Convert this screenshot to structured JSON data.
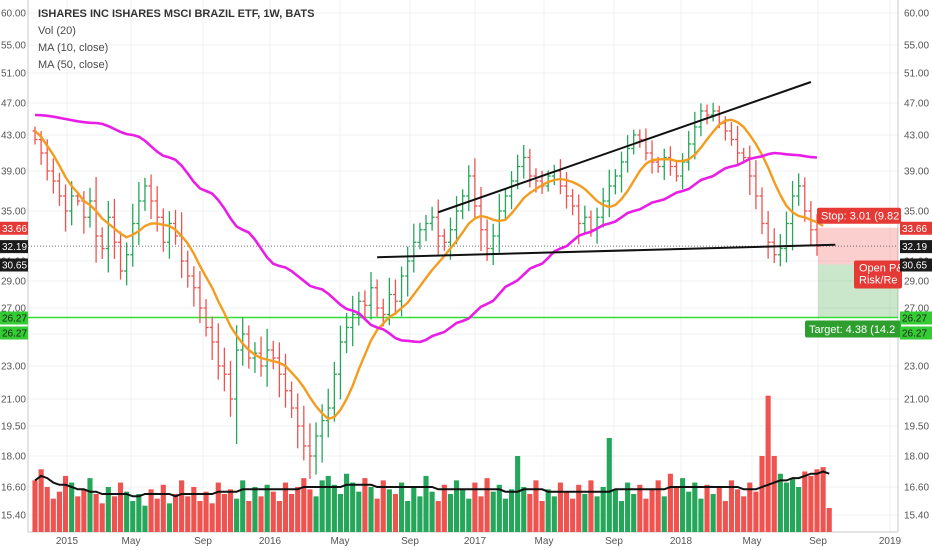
{
  "legend": {
    "title": "ISHARES INC ISHARES MSCI BRAZIL ETF, 1W, BATS",
    "vol": "Vol (20)",
    "ma10": "MA (10, close)",
    "ma50": "MA (50, close)"
  },
  "colors": {
    "up": "#26a65b",
    "down": "#ef5350",
    "ma10": "#f39c1f",
    "ma50": "#e91ee6",
    "vol_ma": "#111111",
    "stop": "#e53935",
    "target": "#2e9f2e",
    "hline": "#33dd33",
    "trend": "#111111"
  },
  "chart_data": {
    "type": "candlestick",
    "x_ticks": [
      "2015",
      "May",
      "Sep",
      "2016",
      "May",
      "Sep",
      "2017",
      "May",
      "Sep",
      "2018",
      "May",
      "Sep",
      "2019"
    ],
    "y_ticks": [
      60.0,
      55.0,
      51.0,
      47.0,
      43.0,
      39.0,
      35.0,
      31.0,
      29.0,
      27.0,
      25.0,
      23.0,
      21.0,
      19.5,
      18.0,
      16.6,
      15.4
    ],
    "y_tick_labels": [
      "60.00",
      "55.00",
      "51.00",
      "47.00",
      "43.00",
      "39.00",
      "35.00",
      "31.00",
      "29.00",
      "27.00",
      "25.00",
      "23.00",
      "21.00",
      "19.50",
      "18.00",
      "16.60",
      "15.40"
    ],
    "price_closes": [
      42.5,
      41.0,
      39.0,
      38.0,
      36.5,
      35.0,
      36.5,
      36.0,
      34.5,
      36.0,
      33.0,
      32.0,
      34.5,
      32.5,
      30.0,
      31.5,
      34.0,
      36.0,
      37.5,
      36.0,
      34.5,
      32.5,
      34.0,
      33.0,
      31.0,
      29.5,
      28.5,
      27.0,
      25.5,
      24.5,
      23.0,
      22.5,
      21.0,
      24.0,
      25.0,
      23.5,
      23.8,
      23.0,
      24.0,
      23.5,
      22.5,
      21.5,
      20.5,
      19.5,
      18.5,
      18.0,
      19.0,
      19.8,
      20.5,
      22.5,
      24.5,
      25.5,
      26.5,
      27.5,
      27.2,
      28.5,
      27.0,
      26.5,
      28.0,
      27.5,
      29.5,
      31.0,
      32.5,
      33.5,
      34.0,
      34.5,
      33.0,
      32.5,
      33.5,
      35.0,
      36.5,
      38.5,
      35.5,
      33.5,
      32.0,
      33.0,
      35.0,
      36.5,
      38.0,
      39.5,
      40.5,
      38.5,
      38.0,
      37.5,
      38.5,
      39.0,
      37.5,
      36.5,
      35.5,
      34.0,
      34.5,
      33.5,
      34.5,
      36.0,
      37.5,
      38.5,
      40.0,
      41.5,
      43.0,
      42.5,
      41.0,
      40.0,
      39.5,
      40.5,
      39.5,
      38.5,
      40.0,
      42.0,
      44.0,
      46.0,
      45.5,
      46.0,
      44.5,
      43.5,
      42.5,
      41.0,
      40.5,
      38.5,
      36.5,
      34.0,
      32.5,
      31.5,
      32.0,
      34.0,
      36.5,
      37.5,
      35.0,
      33.5,
      32.19
    ],
    "ma10": [
      43.5,
      42.8,
      41.8,
      40.8,
      39.6,
      38.4,
      37.5,
      36.8,
      36.0,
      35.6,
      35.0,
      34.4,
      34.0,
      33.6,
      33.2,
      32.9,
      33.1,
      33.4,
      33.8,
      34.0,
      34.0,
      33.9,
      33.8,
      33.5,
      33.0,
      32.4,
      31.6,
      30.5,
      29.4,
      28.5,
      27.5,
      26.6,
      25.6,
      24.9,
      24.4,
      24.0,
      23.7,
      23.5,
      23.4,
      23.3,
      23.2,
      23.0,
      22.6,
      22.2,
      21.7,
      21.1,
      20.6,
      20.2,
      19.9,
      20.0,
      20.4,
      21.0,
      21.8,
      22.8,
      23.7,
      24.6,
      25.3,
      25.8,
      26.3,
      26.6,
      27.0,
      27.4,
      28.0,
      28.6,
      29.3,
      30.1,
      30.8,
      31.4,
      32.0,
      32.6,
      33.3,
      34.0,
      34.4,
      34.6,
      34.5,
      34.3,
      34.2,
      34.3,
      34.8,
      35.5,
      36.3,
      36.8,
      37.2,
      37.6,
      37.9,
      38.1,
      38.2,
      38.1,
      37.9,
      37.6,
      37.2,
      36.6,
      36.0,
      35.6,
      35.4,
      35.6,
      36.2,
      37.0,
      38.0,
      39.0,
      39.8,
      40.2,
      40.3,
      40.3,
      40.3,
      40.1,
      40.1,
      40.3,
      40.8,
      41.6,
      42.5,
      43.4,
      44.3,
      44.8,
      44.9,
      44.6,
      44.0,
      43.0,
      42.0,
      40.8,
      39.4,
      37.9,
      36.6,
      35.5,
      34.9,
      34.6,
      34.5,
      34.3,
      34.1,
      33.8
    ],
    "ma50_anchors": [
      [
        0,
        45.5
      ],
      [
        10,
        44.5
      ],
      [
        16,
        43.0
      ],
      [
        22,
        40.5
      ],
      [
        28,
        37.0
      ],
      [
        34,
        33.5
      ],
      [
        40,
        30.5
      ],
      [
        46,
        28.5
      ],
      [
        52,
        26.8
      ],
      [
        56,
        25.5
      ],
      [
        60,
        24.6
      ],
      [
        63,
        24.5
      ],
      [
        66,
        25.0
      ],
      [
        70,
        26.0
      ],
      [
        74,
        27.3
      ],
      [
        78,
        28.8
      ],
      [
        82,
        30.5
      ],
      [
        86,
        32.0
      ],
      [
        90,
        33.2
      ],
      [
        94,
        34.0
      ],
      [
        98,
        35.0
      ],
      [
        102,
        36.0
      ],
      [
        106,
        37.0
      ],
      [
        110,
        38.3
      ],
      [
        114,
        39.5
      ],
      [
        118,
        40.5
      ],
      [
        121,
        41.0
      ],
      [
        124,
        40.8
      ],
      [
        128,
        40.5
      ],
      [
        130,
        40.0
      ]
    ],
    "volume": [
      16.9,
      17.4,
      16.6,
      16.1,
      16.4,
      17.1,
      16.8,
      16.2,
      16.5,
      17.0,
      16.3,
      15.9,
      16.6,
      16.2,
      16.8,
      16.4,
      16.0,
      16.3,
      15.8,
      16.5,
      16.1,
      16.7,
      15.9,
      16.3,
      16.9,
      16.2,
      16.6,
      16.0,
      16.4,
      15.9,
      16.8,
      16.3,
      16.5,
      16.1,
      16.9,
      16.0,
      16.6,
      16.2,
      16.7,
      16.4,
      16.0,
      16.8,
      16.3,
      16.6,
      17.0,
      16.5,
      16.2,
      16.9,
      17.1,
      16.7,
      16.3,
      17.2,
      16.8,
      16.4,
      17.0,
      16.6,
      16.1,
      16.9,
      16.5,
      16.3,
      16.8,
      16.0,
      16.6,
      16.2,
      17.1,
      16.4,
      16.0,
      16.7,
      16.3,
      16.9,
      16.5,
      16.1,
      16.8,
      16.2,
      17.0,
      16.4,
      16.7,
      16.1,
      16.5,
      18.0,
      16.6,
      16.3,
      16.9,
      16.0,
      16.5,
      16.2,
      16.8,
      16.4,
      16.1,
      16.7,
      16.3,
      16.9,
      16.2,
      16.6,
      18.9,
      16.5,
      16.0,
      16.8,
      16.3,
      16.7,
      16.1,
      16.5,
      16.9,
      16.2,
      17.2,
      16.6,
      17.0,
      16.4,
      16.8,
      16.1,
      16.7,
      16.3,
      16.6,
      16.0,
      16.9,
      16.5,
      16.2,
      16.8,
      16.4,
      18.0,
      21.2,
      18.0,
      17.2,
      16.8,
      17.0,
      16.6,
      17.3,
      17.1,
      17.4,
      17.5,
      15.7
    ],
    "volume_ma": [
      16.9,
      17.1,
      17.0,
      16.8,
      16.7,
      16.7,
      16.6,
      16.5,
      16.5,
      16.4,
      16.4,
      16.3,
      16.3,
      16.3,
      16.3,
      16.3,
      16.2,
      16.2,
      16.3,
      16.3,
      16.3,
      16.3,
      16.3,
      16.2,
      16.3,
      16.3,
      16.3,
      16.3,
      16.3,
      16.3,
      16.4,
      16.4,
      16.4,
      16.4,
      16.5,
      16.5,
      16.5,
      16.5,
      16.5,
      16.5,
      16.5,
      16.5,
      16.5,
      16.5,
      16.6,
      16.6,
      16.6,
      16.6,
      16.6,
      16.6,
      16.6,
      16.7,
      16.7,
      16.7,
      16.7,
      16.7,
      16.6,
      16.6,
      16.6,
      16.6,
      16.6,
      16.6,
      16.6,
      16.6,
      16.6,
      16.6,
      16.5,
      16.5,
      16.5,
      16.5,
      16.5,
      16.5,
      16.5,
      16.5,
      16.5,
      16.5,
      16.5,
      16.4,
      16.4,
      16.4,
      16.5,
      16.5,
      16.5,
      16.5,
      16.4,
      16.4,
      16.4,
      16.4,
      16.4,
      16.4,
      16.4,
      16.4,
      16.4,
      16.4,
      16.4,
      16.5,
      16.5,
      16.5,
      16.5,
      16.5,
      16.5,
      16.5,
      16.5,
      16.5,
      16.6,
      16.6,
      16.6,
      16.6,
      16.6,
      16.6,
      16.6,
      16.6,
      16.6,
      16.6,
      16.6,
      16.6,
      16.5,
      16.5,
      16.5,
      16.6,
      16.7,
      16.8,
      16.9,
      16.9,
      17.0,
      17.0,
      17.1,
      17.2,
      17.2,
      17.3,
      17.2
    ],
    "trendlines": [
      {
        "from": [
          66,
          34.9
        ],
        "to": [
          127,
          49.8
        ]
      },
      {
        "from": [
          56,
          31.3
        ],
        "to": [
          131,
          32.3
        ]
      }
    ],
    "horizontal_line": 26.27,
    "last_close": 32.19,
    "position": {
      "stop_price": 33.66,
      "entry_price": 30.65,
      "target_price": 26.27,
      "stop_label": "Stop: 3.01 (9.82",
      "target_label": "Target: 4.38 (14.2",
      "open_label": "Open P&",
      "rr_label": "Risk/Re"
    },
    "price_tags_right": [
      {
        "value": "33.66",
        "kind": "stop"
      },
      {
        "value": "32.19",
        "kind": "last"
      },
      {
        "value": "30.65",
        "kind": "entry"
      },
      {
        "value": "26.27",
        "kind": "target"
      },
      {
        "value": "26.27",
        "kind": "target"
      }
    ],
    "price_tags_left": [
      {
        "value": "33.66",
        "kind": "stop"
      },
      {
        "value": "32.19",
        "kind": "last"
      },
      {
        "value": "30.65",
        "kind": "entry"
      },
      {
        "value": "26.27",
        "kind": "target"
      },
      {
        "value": "26.27",
        "kind": "target"
      }
    ]
  }
}
